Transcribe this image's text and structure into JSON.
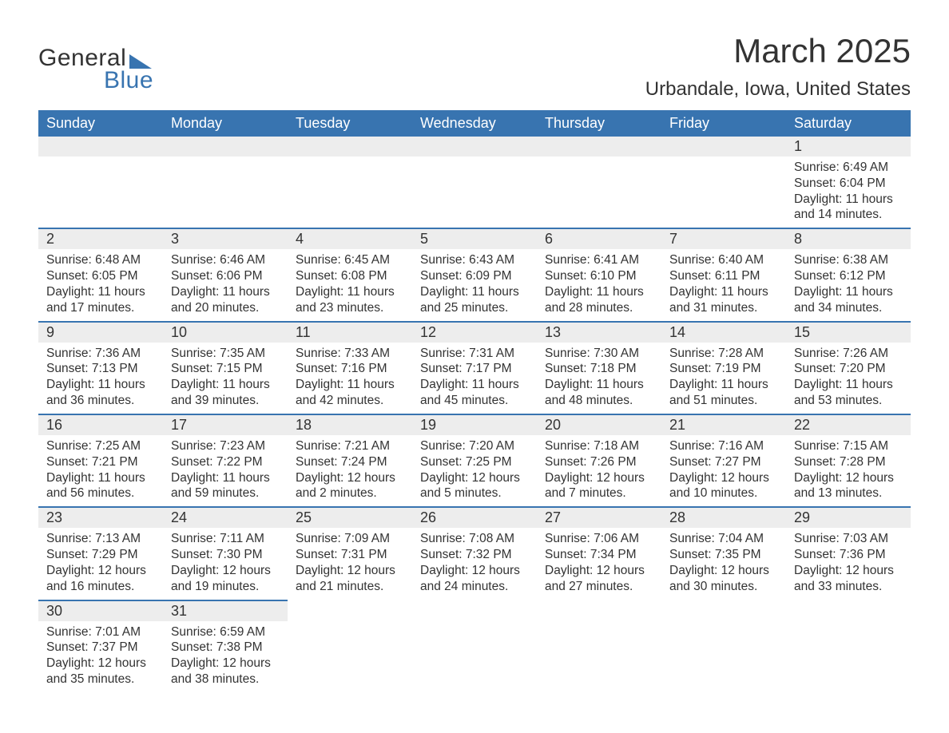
{
  "logo": {
    "general": "General",
    "blue": "Blue"
  },
  "title": {
    "month": "March 2025",
    "location": "Urbandale, Iowa, United States"
  },
  "colors": {
    "header_bg": "#3874b0",
    "header_text": "#ffffff",
    "daynum_bg": "#ededed",
    "daynum_border": "#3874b0",
    "body_text": "#333333",
    "page_bg": "#ffffff",
    "logo_accent": "#3874b0"
  },
  "typography": {
    "title_fontsize": 42,
    "location_fontsize": 24,
    "dayheader_fontsize": 18,
    "daynum_fontsize": 18,
    "body_fontsize": 15.5,
    "logo_fontsize": 30
  },
  "day_names": [
    "Sunday",
    "Monday",
    "Tuesday",
    "Wednesday",
    "Thursday",
    "Friday",
    "Saturday"
  ],
  "weeks": [
    [
      null,
      null,
      null,
      null,
      null,
      null,
      {
        "n": "1",
        "sr": "Sunrise: 6:49 AM",
        "ss": "Sunset: 6:04 PM",
        "d1": "Daylight: 11 hours",
        "d2": "and 14 minutes."
      }
    ],
    [
      {
        "n": "2",
        "sr": "Sunrise: 6:48 AM",
        "ss": "Sunset: 6:05 PM",
        "d1": "Daylight: 11 hours",
        "d2": "and 17 minutes."
      },
      {
        "n": "3",
        "sr": "Sunrise: 6:46 AM",
        "ss": "Sunset: 6:06 PM",
        "d1": "Daylight: 11 hours",
        "d2": "and 20 minutes."
      },
      {
        "n": "4",
        "sr": "Sunrise: 6:45 AM",
        "ss": "Sunset: 6:08 PM",
        "d1": "Daylight: 11 hours",
        "d2": "and 23 minutes."
      },
      {
        "n": "5",
        "sr": "Sunrise: 6:43 AM",
        "ss": "Sunset: 6:09 PM",
        "d1": "Daylight: 11 hours",
        "d2": "and 25 minutes."
      },
      {
        "n": "6",
        "sr": "Sunrise: 6:41 AM",
        "ss": "Sunset: 6:10 PM",
        "d1": "Daylight: 11 hours",
        "d2": "and 28 minutes."
      },
      {
        "n": "7",
        "sr": "Sunrise: 6:40 AM",
        "ss": "Sunset: 6:11 PM",
        "d1": "Daylight: 11 hours",
        "d2": "and 31 minutes."
      },
      {
        "n": "8",
        "sr": "Sunrise: 6:38 AM",
        "ss": "Sunset: 6:12 PM",
        "d1": "Daylight: 11 hours",
        "d2": "and 34 minutes."
      }
    ],
    [
      {
        "n": "9",
        "sr": "Sunrise: 7:36 AM",
        "ss": "Sunset: 7:13 PM",
        "d1": "Daylight: 11 hours",
        "d2": "and 36 minutes."
      },
      {
        "n": "10",
        "sr": "Sunrise: 7:35 AM",
        "ss": "Sunset: 7:15 PM",
        "d1": "Daylight: 11 hours",
        "d2": "and 39 minutes."
      },
      {
        "n": "11",
        "sr": "Sunrise: 7:33 AM",
        "ss": "Sunset: 7:16 PM",
        "d1": "Daylight: 11 hours",
        "d2": "and 42 minutes."
      },
      {
        "n": "12",
        "sr": "Sunrise: 7:31 AM",
        "ss": "Sunset: 7:17 PM",
        "d1": "Daylight: 11 hours",
        "d2": "and 45 minutes."
      },
      {
        "n": "13",
        "sr": "Sunrise: 7:30 AM",
        "ss": "Sunset: 7:18 PM",
        "d1": "Daylight: 11 hours",
        "d2": "and 48 minutes."
      },
      {
        "n": "14",
        "sr": "Sunrise: 7:28 AM",
        "ss": "Sunset: 7:19 PM",
        "d1": "Daylight: 11 hours",
        "d2": "and 51 minutes."
      },
      {
        "n": "15",
        "sr": "Sunrise: 7:26 AM",
        "ss": "Sunset: 7:20 PM",
        "d1": "Daylight: 11 hours",
        "d2": "and 53 minutes."
      }
    ],
    [
      {
        "n": "16",
        "sr": "Sunrise: 7:25 AM",
        "ss": "Sunset: 7:21 PM",
        "d1": "Daylight: 11 hours",
        "d2": "and 56 minutes."
      },
      {
        "n": "17",
        "sr": "Sunrise: 7:23 AM",
        "ss": "Sunset: 7:22 PM",
        "d1": "Daylight: 11 hours",
        "d2": "and 59 minutes."
      },
      {
        "n": "18",
        "sr": "Sunrise: 7:21 AM",
        "ss": "Sunset: 7:24 PM",
        "d1": "Daylight: 12 hours",
        "d2": "and 2 minutes."
      },
      {
        "n": "19",
        "sr": "Sunrise: 7:20 AM",
        "ss": "Sunset: 7:25 PM",
        "d1": "Daylight: 12 hours",
        "d2": "and 5 minutes."
      },
      {
        "n": "20",
        "sr": "Sunrise: 7:18 AM",
        "ss": "Sunset: 7:26 PM",
        "d1": "Daylight: 12 hours",
        "d2": "and 7 minutes."
      },
      {
        "n": "21",
        "sr": "Sunrise: 7:16 AM",
        "ss": "Sunset: 7:27 PM",
        "d1": "Daylight: 12 hours",
        "d2": "and 10 minutes."
      },
      {
        "n": "22",
        "sr": "Sunrise: 7:15 AM",
        "ss": "Sunset: 7:28 PM",
        "d1": "Daylight: 12 hours",
        "d2": "and 13 minutes."
      }
    ],
    [
      {
        "n": "23",
        "sr": "Sunrise: 7:13 AM",
        "ss": "Sunset: 7:29 PM",
        "d1": "Daylight: 12 hours",
        "d2": "and 16 minutes."
      },
      {
        "n": "24",
        "sr": "Sunrise: 7:11 AM",
        "ss": "Sunset: 7:30 PM",
        "d1": "Daylight: 12 hours",
        "d2": "and 19 minutes."
      },
      {
        "n": "25",
        "sr": "Sunrise: 7:09 AM",
        "ss": "Sunset: 7:31 PM",
        "d1": "Daylight: 12 hours",
        "d2": "and 21 minutes."
      },
      {
        "n": "26",
        "sr": "Sunrise: 7:08 AM",
        "ss": "Sunset: 7:32 PM",
        "d1": "Daylight: 12 hours",
        "d2": "and 24 minutes."
      },
      {
        "n": "27",
        "sr": "Sunrise: 7:06 AM",
        "ss": "Sunset: 7:34 PM",
        "d1": "Daylight: 12 hours",
        "d2": "and 27 minutes."
      },
      {
        "n": "28",
        "sr": "Sunrise: 7:04 AM",
        "ss": "Sunset: 7:35 PM",
        "d1": "Daylight: 12 hours",
        "d2": "and 30 minutes."
      },
      {
        "n": "29",
        "sr": "Sunrise: 7:03 AM",
        "ss": "Sunset: 7:36 PM",
        "d1": "Daylight: 12 hours",
        "d2": "and 33 minutes."
      }
    ],
    [
      {
        "n": "30",
        "sr": "Sunrise: 7:01 AM",
        "ss": "Sunset: 7:37 PM",
        "d1": "Daylight: 12 hours",
        "d2": "and 35 minutes."
      },
      {
        "n": "31",
        "sr": "Sunrise: 6:59 AM",
        "ss": "Sunset: 7:38 PM",
        "d1": "Daylight: 12 hours",
        "d2": "and 38 minutes."
      },
      null,
      null,
      null,
      null,
      null
    ]
  ]
}
